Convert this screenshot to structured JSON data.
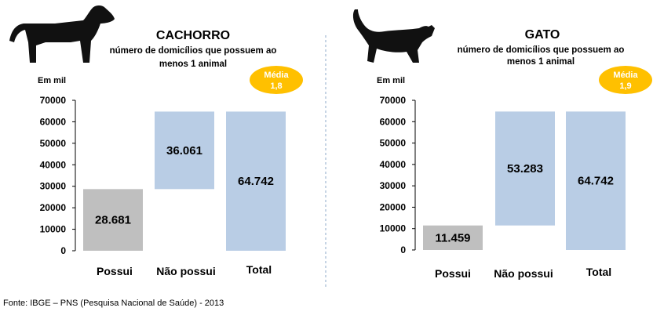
{
  "chart_data": [
    {
      "type": "bar",
      "title": "CACHORRO",
      "subtitle_lines": [
        "número de domicílios que possuem ao",
        "menos 1 animal"
      ],
      "unit_label": "Em mil",
      "badge": {
        "label": "Média",
        "value": "1,8"
      },
      "icon": "dog-icon",
      "ylim": [
        0,
        70000
      ],
      "yticks": [
        0,
        10000,
        20000,
        30000,
        40000,
        50000,
        60000,
        70000
      ],
      "ytick_labels": [
        "0",
        "10000",
        "20000",
        "30000",
        "40000",
        "50000",
        "60000",
        "70000"
      ],
      "grid": false,
      "bars": [
        {
          "category": "Possui",
          "base": 0,
          "top": 28681,
          "label": "28.681",
          "color": "#bfbfbf"
        },
        {
          "category": "Não possui",
          "base": 28681,
          "top": 64742,
          "label": "36.061",
          "color": "#b9cde5"
        },
        {
          "category": "Total",
          "base": 0,
          "top": 64742,
          "label": "64.742",
          "color": "#b9cde5"
        }
      ]
    },
    {
      "type": "bar",
      "title": "GATO",
      "subtitle_lines": [
        "número de domicílios que possuem ao",
        "menos 1 animal"
      ],
      "unit_label": "Em mil",
      "badge": {
        "label": "Média",
        "value": "1,9"
      },
      "icon": "cat-icon",
      "ylim": [
        0,
        70000
      ],
      "yticks": [
        0,
        10000,
        20000,
        30000,
        40000,
        50000,
        60000,
        70000
      ],
      "ytick_labels": [
        "0",
        "10000",
        "20000",
        "30000",
        "40000",
        "50000",
        "60000",
        "70000"
      ],
      "grid": false,
      "bars": [
        {
          "category": "Possui",
          "base": 0,
          "top": 11459,
          "label": "11.459",
          "color": "#bfbfbf"
        },
        {
          "category": "Não possui",
          "base": 11459,
          "top": 64742,
          "label": "53.283",
          "color": "#b9cde5"
        },
        {
          "category": "Total",
          "base": 0,
          "top": 64742,
          "label": "64.742",
          "color": "#b9cde5"
        }
      ]
    }
  ],
  "colors": {
    "badge": "#ffc000",
    "badge_text": "#ffffff",
    "divider": "#8ea9c8"
  },
  "footer": {
    "source": "Fonte: IBGE – PNS (Pesquisa Nacional de Saúde) - 2013"
  }
}
